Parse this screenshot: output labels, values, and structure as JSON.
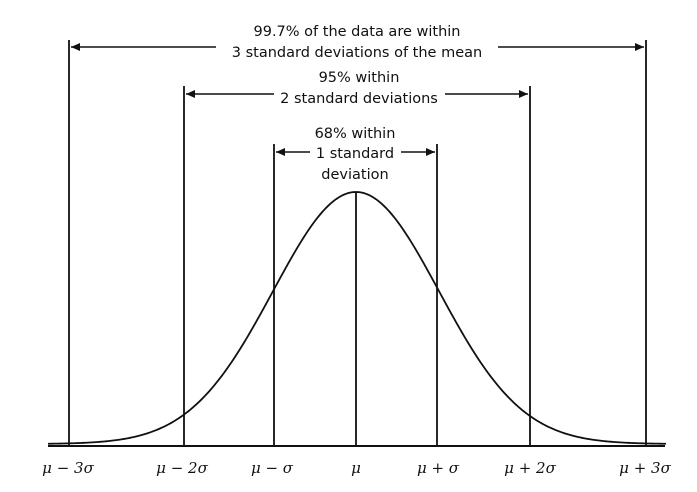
{
  "annotations": {
    "three_sigma": {
      "line1": "99.7% of the data are within",
      "line2": "3 standard deviations of the mean"
    },
    "two_sigma": {
      "line1": "95% within",
      "line2": "2 standard deviations"
    },
    "one_sigma": {
      "line1": "68% within",
      "line2": "1 standard",
      "line3": "deviation"
    }
  },
  "axis": {
    "tick_labels": [
      "μ − 3σ",
      "μ − 2σ",
      "μ − σ",
      "μ",
      "μ + σ",
      "μ + 2σ",
      "μ + 3σ"
    ]
  },
  "colors": {
    "ink": "#111111",
    "background": "#ffffff"
  }
}
